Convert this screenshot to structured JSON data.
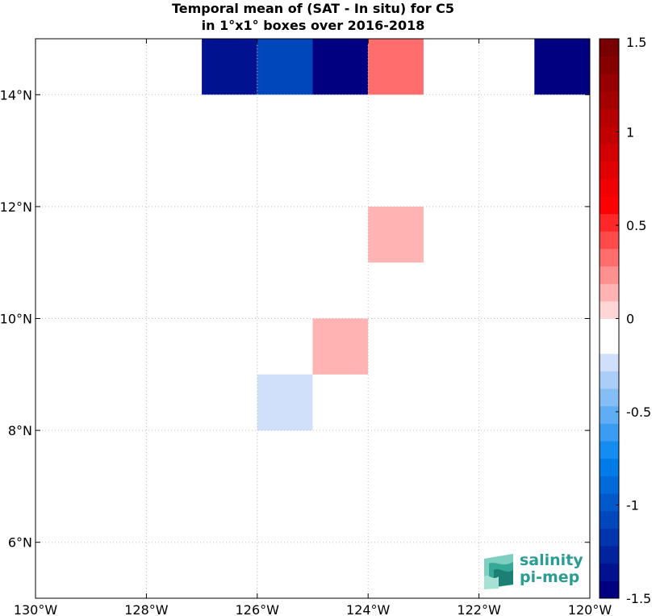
{
  "chart_data": {
    "type": "heatmap",
    "title": [
      "Temporal mean of (SAT - In situ) for C5",
      "in 1°x1° boxes over 2016-2018"
    ],
    "x_ticks": [
      {
        "value": -130,
        "label": "130°W"
      },
      {
        "value": -128,
        "label": "128°W"
      },
      {
        "value": -126,
        "label": "126°W"
      },
      {
        "value": -124,
        "label": "124°W"
      },
      {
        "value": -122,
        "label": "122°W"
      },
      {
        "value": -120,
        "label": "120°W"
      }
    ],
    "y_ticks": [
      {
        "value": 6,
        "label": "6°N"
      },
      {
        "value": 8,
        "label": "8°N"
      },
      {
        "value": 10,
        "label": "10°N"
      },
      {
        "value": 12,
        "label": "12°N"
      },
      {
        "value": 14,
        "label": "14°N"
      }
    ],
    "xlim": [
      -130,
      -120
    ],
    "ylim": [
      5,
      15
    ],
    "grid": true,
    "cells": [
      {
        "lon": -127,
        "lat": 14,
        "value": -1.4
      },
      {
        "lon": -126,
        "lat": 14,
        "value": -1.1
      },
      {
        "lon": -125,
        "lat": 14,
        "value": -1.5
      },
      {
        "lon": -124,
        "lat": 14,
        "value": 0.3
      },
      {
        "lon": -121,
        "lat": 14,
        "value": -1.5
      },
      {
        "lon": -124,
        "lat": 12,
        "value": -0.1
      },
      {
        "lon": -124,
        "lat": 11,
        "value": 0.1
      },
      {
        "lon": -125,
        "lat": 9,
        "value": 0.1
      },
      {
        "lon": -126,
        "lat": 8,
        "value": -0.25
      }
    ],
    "colorbar": {
      "min": -1.5,
      "max": 1.5,
      "ticks": [
        {
          "value": 1.5,
          "label": "1.5"
        },
        {
          "value": 1,
          "label": "1"
        },
        {
          "value": 0.5,
          "label": "0.5"
        },
        {
          "value": 0,
          "label": "0"
        },
        {
          "value": -0.5,
          "label": "-0.5"
        },
        {
          "value": -1,
          "label": "-1"
        },
        {
          "value": -1.5,
          "label": "-1.5"
        }
      ],
      "colors": [
        "#000080",
        "#00128f",
        "#00239e",
        "#0035ad",
        "#0047bc",
        "#0058cb",
        "#006ada",
        "#007ce9",
        "#148cf0",
        "#3a9df2",
        "#5fadf4",
        "#85bef6",
        "#aacef8",
        "#d0dffa",
        "#ffffff",
        "#ffffff",
        "#ffd6d6",
        "#ffb3b3",
        "#ff9090",
        "#ff6d6d",
        "#ff4a4a",
        "#ff2727",
        "#ff0000",
        "#f00000",
        "#e10000",
        "#d20000",
        "#c30000",
        "#b40000",
        "#a50000",
        "#960000",
        "#870000",
        "#780000"
      ]
    }
  },
  "logo": {
    "line1": "salinity",
    "line2": "pi-mep"
  }
}
